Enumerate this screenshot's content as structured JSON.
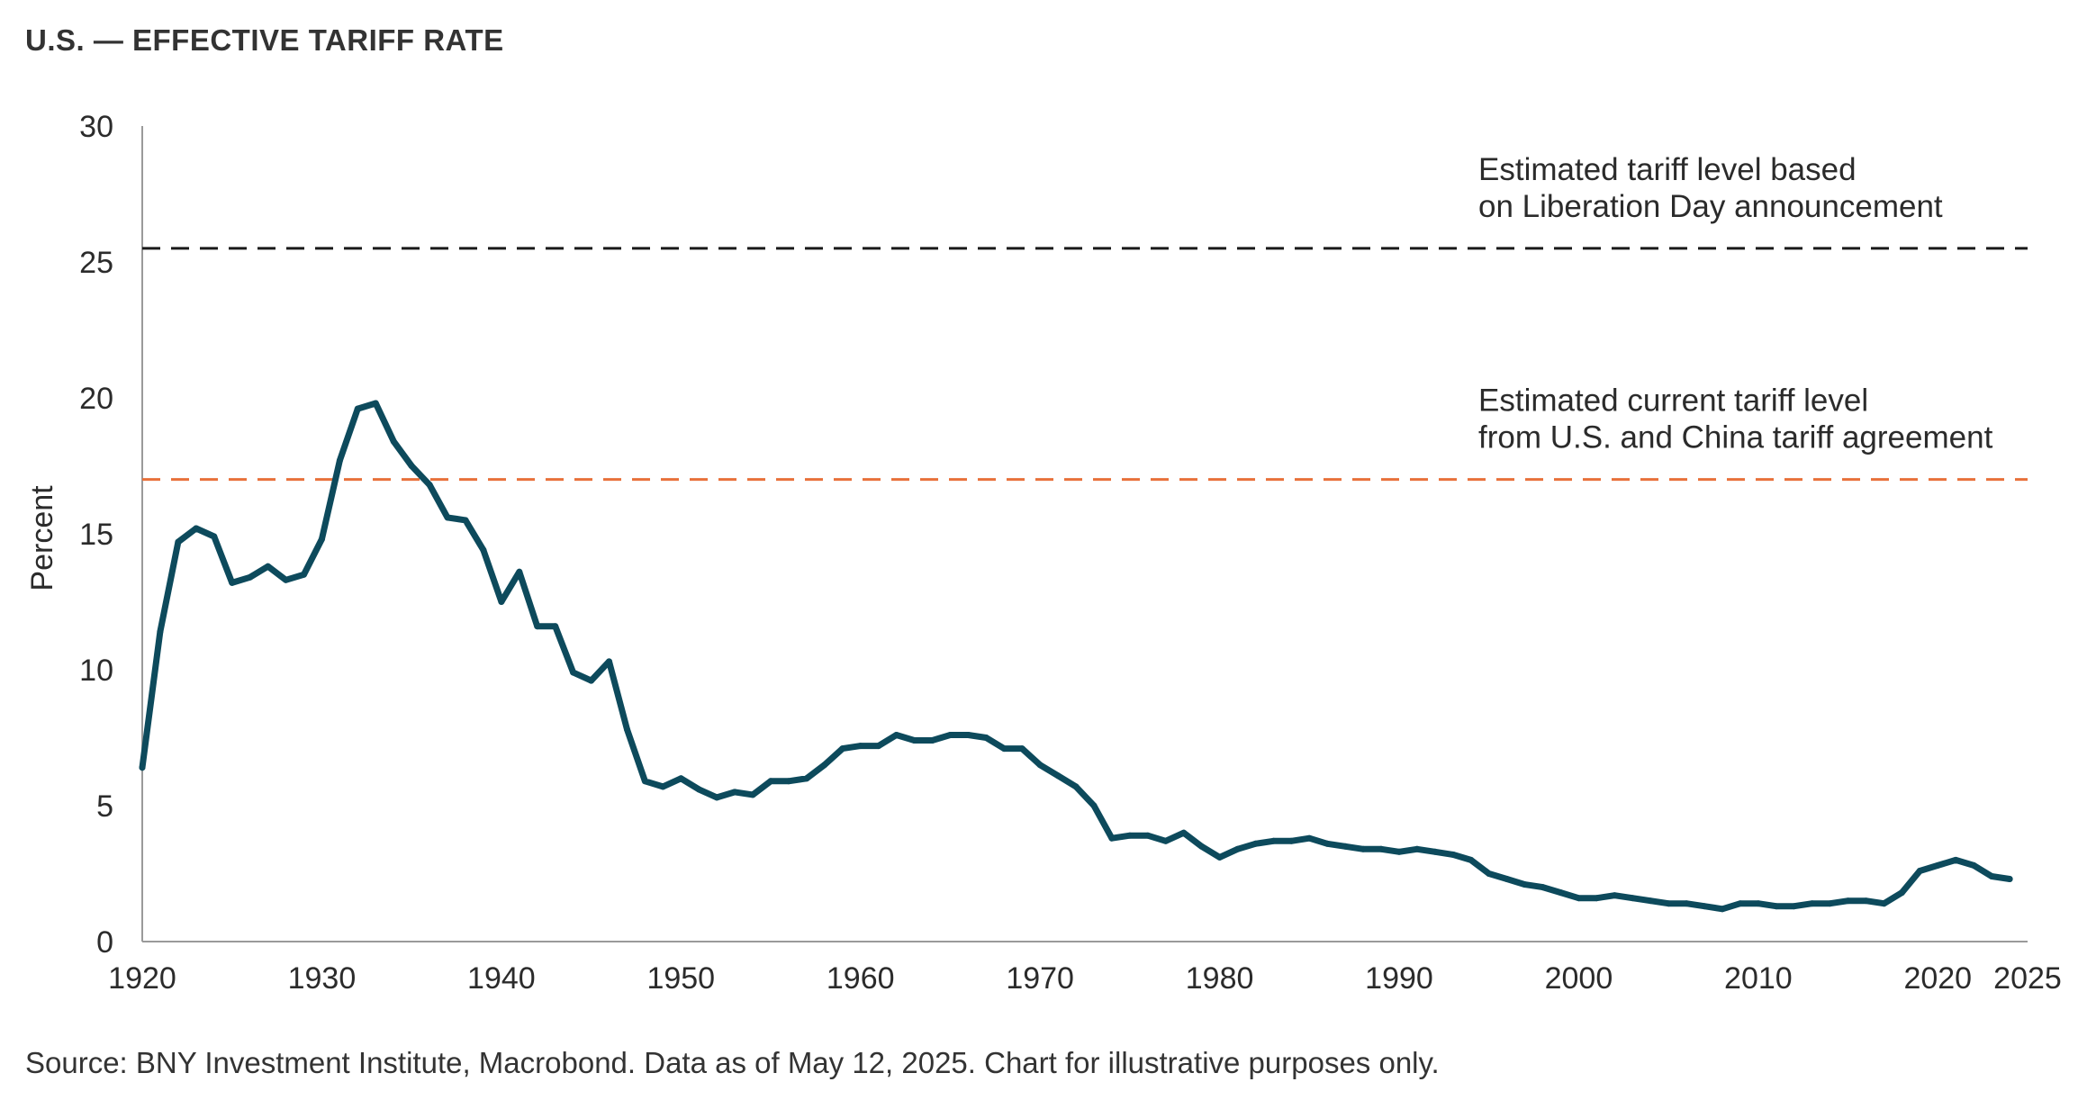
{
  "chart_data": {
    "type": "line",
    "title": "U.S. — EFFECTIVE TARIFF RATE",
    "ylabel": "Percent",
    "xlabel": "",
    "xlim": [
      1920,
      2025
    ],
    "ylim": [
      0,
      30
    ],
    "x_ticks": [
      "1920",
      "1930",
      "1940",
      "1950",
      "1960",
      "1970",
      "1980",
      "1990",
      "2000",
      "2010",
      "2020",
      "2025"
    ],
    "y_ticks": [
      "0",
      "5",
      "10",
      "15",
      "20",
      "25",
      "30"
    ],
    "grid": false,
    "series": [
      {
        "color": "#0d4a5c",
        "x": [
          1920,
          1921,
          1922,
          1923,
          1924,
          1925,
          1926,
          1927,
          1928,
          1929,
          1930,
          1931,
          1932,
          1933,
          1934,
          1935,
          1936,
          1937,
          1938,
          1939,
          1940,
          1941,
          1942,
          1943,
          1944,
          1945,
          1946,
          1947,
          1948,
          1949,
          1950,
          1951,
          1952,
          1953,
          1954,
          1955,
          1956,
          1957,
          1958,
          1959,
          1960,
          1961,
          1962,
          1963,
          1964,
          1965,
          1966,
          1967,
          1968,
          1969,
          1970,
          1971,
          1972,
          1973,
          1974,
          1975,
          1976,
          1977,
          1978,
          1979,
          1980,
          1981,
          1982,
          1983,
          1984,
          1985,
          1986,
          1987,
          1988,
          1989,
          1990,
          1991,
          1992,
          1993,
          1994,
          1995,
          1996,
          1997,
          1998,
          1999,
          2000,
          2001,
          2002,
          2003,
          2004,
          2005,
          2006,
          2007,
          2008,
          2009,
          2010,
          2011,
          2012,
          2013,
          2014,
          2015,
          2016,
          2017,
          2018,
          2019,
          2020,
          2021,
          2022,
          2023,
          2024
        ],
        "values": [
          6.4,
          11.4,
          14.7,
          15.2,
          14.9,
          13.2,
          13.4,
          13.8,
          13.3,
          13.5,
          14.8,
          17.7,
          19.6,
          19.8,
          18.4,
          17.5,
          16.8,
          15.6,
          15.5,
          14.4,
          12.5,
          13.6,
          11.6,
          11.6,
          9.9,
          9.6,
          10.3,
          7.8,
          5.9,
          5.7,
          6.0,
          5.6,
          5.3,
          5.5,
          5.4,
          5.9,
          5.9,
          6.0,
          6.5,
          7.1,
          7.2,
          7.2,
          7.6,
          7.4,
          7.4,
          7.6,
          7.6,
          7.5,
          7.1,
          7.1,
          6.5,
          6.1,
          5.7,
          5.0,
          3.8,
          3.9,
          3.9,
          3.7,
          4.0,
          3.5,
          3.1,
          3.4,
          3.6,
          3.7,
          3.7,
          3.8,
          3.6,
          3.5,
          3.4,
          3.4,
          3.3,
          3.4,
          3.3,
          3.2,
          3.0,
          2.5,
          2.3,
          2.1,
          2.0,
          1.8,
          1.6,
          1.6,
          1.7,
          1.6,
          1.5,
          1.4,
          1.4,
          1.3,
          1.2,
          1.4,
          1.4,
          1.3,
          1.3,
          1.4,
          1.4,
          1.5,
          1.5,
          1.4,
          1.8,
          2.6,
          2.8,
          3.0,
          2.8,
          2.4,
          2.3
        ]
      }
    ],
    "reference_lines": [
      {
        "value": 25.5,
        "color": "#1a1a1a",
        "style": "dashed",
        "label_line1": "Estimated tariff level based",
        "label_line2": "on Liberation Day announcement"
      },
      {
        "value": 17.0,
        "color": "#e8703a",
        "style": "dashed",
        "label_line1": "Estimated current tariff level",
        "label_line2": "from U.S. and China tariff agreement"
      }
    ]
  },
  "source_note": "Source: BNY Investment Institute, Macrobond. Data as of May 12, 2025. Chart for illustrative purposes only."
}
